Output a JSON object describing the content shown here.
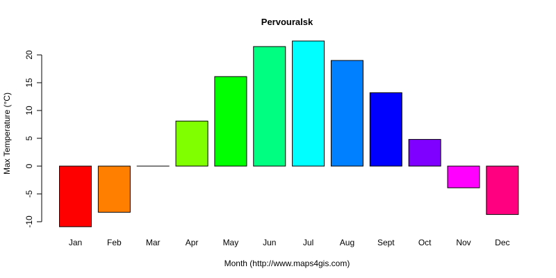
{
  "chart_data": {
    "type": "bar",
    "title": "Pervouralsk",
    "xlabel": "Month (http://www.maps4gis.com)",
    "ylabel": "Max Temperature (°C)",
    "categories": [
      "Jan",
      "Feb",
      "Mar",
      "Apr",
      "May",
      "Jun",
      "Jul",
      "Aug",
      "Sept",
      "Oct",
      "Nov",
      "Dec"
    ],
    "values": [
      -10.9,
      -8.3,
      0.0,
      8.1,
      16.1,
      21.5,
      22.5,
      19.0,
      13.2,
      4.8,
      -3.9,
      -8.7
    ],
    "colors": [
      "#FF0000",
      "#FF8000",
      "#FFFF00",
      "#80FF00",
      "#00FF00",
      "#00FF80",
      "#00FFFF",
      "#0080FF",
      "#0000FF",
      "#8000FF",
      "#FF00FF",
      "#FF0080"
    ],
    "yticks": [
      -10,
      -5,
      0,
      5,
      10,
      15,
      20
    ],
    "ylim": [
      -10.9,
      22.5
    ],
    "grid": false,
    "legend": null
  }
}
